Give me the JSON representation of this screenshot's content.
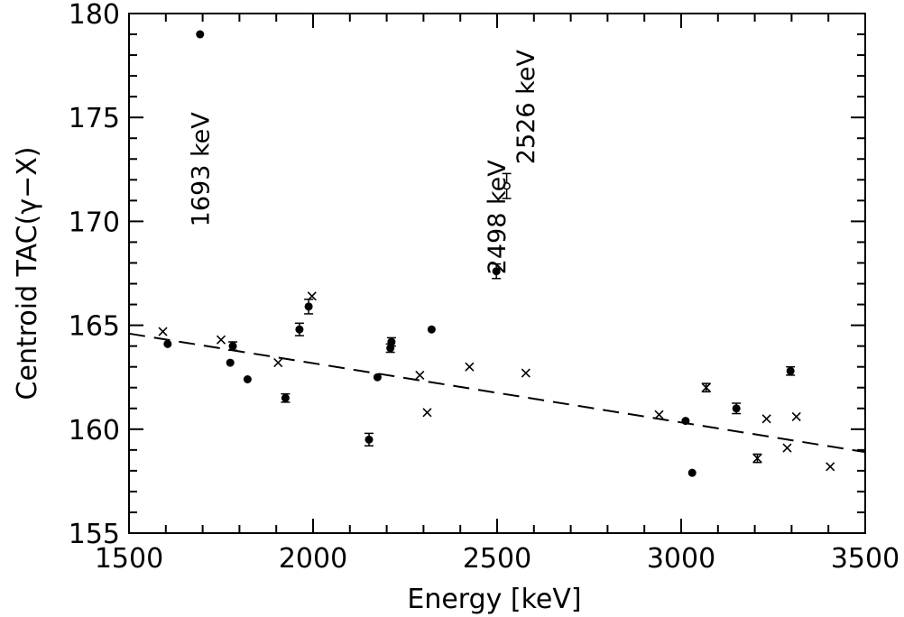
{
  "chart_data": {
    "type": "scatter",
    "xlabel": "Energy [keV]",
    "ylabel": "Centroid TAC(γ−X)",
    "xlim": [
      1500,
      3500
    ],
    "ylim": [
      155,
      180
    ],
    "x_ticks": [
      1500,
      2000,
      2500,
      3000,
      3500
    ],
    "y_ticks": [
      155,
      160,
      165,
      170,
      175,
      180
    ],
    "series": [
      {
        "marker": "filled-circle",
        "points": [
          {
            "x": 1605,
            "y": 164.1
          },
          {
            "x": 1693,
            "y": 179.0
          },
          {
            "x": 1775,
            "y": 163.2
          },
          {
            "x": 1782,
            "y": 164.0,
            "err": 0.2
          },
          {
            "x": 1822,
            "y": 162.4
          },
          {
            "x": 1925,
            "y": 161.5,
            "err": 0.2
          },
          {
            "x": 1963,
            "y": 164.8,
            "err": 0.3
          },
          {
            "x": 1988,
            "y": 165.9,
            "err": 0.35
          },
          {
            "x": 2152,
            "y": 159.5,
            "err": 0.3
          },
          {
            "x": 2175,
            "y": 162.5
          },
          {
            "x": 2210,
            "y": 163.9,
            "err": 0.2
          },
          {
            "x": 2213,
            "y": 164.2,
            "err": 0.2
          },
          {
            "x": 2322,
            "y": 164.8
          },
          {
            "x": 2498,
            "y": 167.6,
            "err": 0.35
          },
          {
            "x": 3012,
            "y": 160.4
          },
          {
            "x": 3030,
            "y": 157.9
          },
          {
            "x": 3150,
            "y": 161.0,
            "err": 0.25
          },
          {
            "x": 3297,
            "y": 162.8,
            "err": 0.2
          }
        ]
      },
      {
        "marker": "open-circle",
        "points": [
          {
            "x": 2526,
            "y": 171.7,
            "err": 0.6
          }
        ]
      },
      {
        "marker": "cross",
        "points": [
          {
            "x": 1592,
            "y": 164.7
          },
          {
            "x": 1750,
            "y": 164.3
          },
          {
            "x": 1905,
            "y": 163.2
          },
          {
            "x": 1997,
            "y": 166.4
          },
          {
            "x": 2290,
            "y": 162.6
          },
          {
            "x": 2310,
            "y": 160.8
          },
          {
            "x": 2425,
            "y": 163.0
          },
          {
            "x": 2578,
            "y": 162.7
          },
          {
            "x": 2940,
            "y": 160.7
          },
          {
            "x": 3068,
            "y": 162.0,
            "err": 0.2
          },
          {
            "x": 3207,
            "y": 158.6,
            "err": 0.2
          },
          {
            "x": 3232,
            "y": 160.5
          },
          {
            "x": 3288,
            "y": 159.1
          },
          {
            "x": 3313,
            "y": 160.6
          },
          {
            "x": 3405,
            "y": 158.2
          }
        ]
      }
    ],
    "fit_line": {
      "style": "dashed",
      "points": [
        {
          "x": 1500,
          "y": 164.6
        },
        {
          "x": 3500,
          "y": 158.9
        }
      ]
    },
    "annotations": [
      {
        "text": "1693 keV",
        "x": 1693,
        "y": 172.5
      },
      {
        "text": "2498 keV",
        "x": 2498,
        "y": 170.2
      },
      {
        "text": "2526 keV",
        "x": 2576,
        "y": 175.5
      }
    ]
  }
}
